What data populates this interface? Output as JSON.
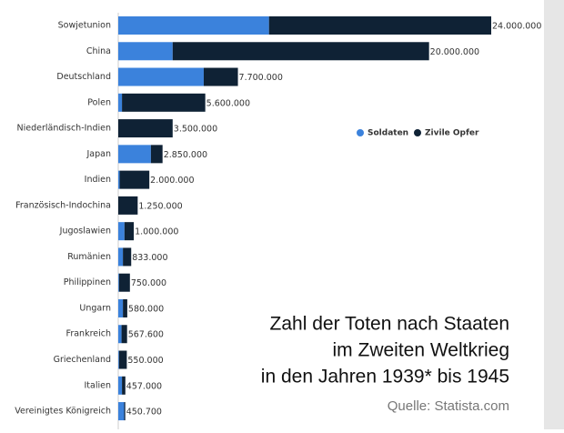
{
  "chart_data": {
    "type": "stacked-bar-horizontal",
    "title": [
      "Zahl der Toten nach Staaten",
      "im Zweiten Weltkrieg",
      "in den Jahren 1939* bis 1945"
    ],
    "source": "Quelle: Statista.com",
    "categories": [
      "Sowjetunion",
      "China",
      "Deutschland",
      "Polen",
      "Niederländisch-Indien",
      "Japan",
      "Indien",
      "Französisch-Indochina",
      "Jugoslawien",
      "Rumänien",
      "Philippinen",
      "Ungarn",
      "Frankreich",
      "Griechenland",
      "Italien",
      "Vereinigtes Königreich"
    ],
    "series": [
      {
        "name": "Soldaten",
        "color": "#3b82dc",
        "values": [
          9700000,
          3500000,
          5500000,
          240000,
          0,
          2100000,
          90000,
          0,
          400000,
          300000,
          50000,
          300000,
          210000,
          50000,
          240000,
          380000
        ]
      },
      {
        "name": "Zivile Opfer",
        "color": "#0f2235",
        "values": [
          14300000,
          16500000,
          2200000,
          5360000,
          3500000,
          750000,
          1910000,
          1250000,
          600000,
          533000,
          700000,
          280000,
          357600,
          500000,
          217000,
          70700
        ]
      }
    ],
    "totals": {
      "values": [
        24000000,
        20000000,
        7700000,
        5600000,
        3500000,
        2850000,
        2000000,
        1250000,
        1000000,
        833000,
        750000,
        580000,
        567600,
        550000,
        457000,
        450700
      ],
      "value_labels": [
        "24.000.000",
        "20.000.000",
        "7.700.000",
        "5.600.000",
        "3.500.000",
        "2.850.000",
        "2.000.000",
        "1.250.000",
        "1.000.000",
        "833.000",
        "750.000",
        "580.000",
        "567.600",
        "550.000",
        "457.000",
        "450.700"
      ]
    },
    "xlim": [
      0,
      24000000
    ],
    "legend": "top-right"
  }
}
